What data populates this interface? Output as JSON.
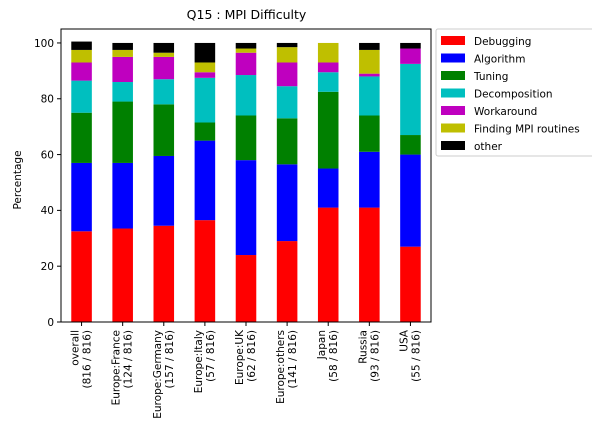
{
  "chart_data": {
    "type": "bar",
    "stacked": true,
    "title": "Q15 : MPI Difficulty",
    "xlabel": "",
    "ylabel": "Percentage",
    "ylim": [
      0,
      105
    ],
    "yticks": [
      0,
      20,
      40,
      60,
      80,
      100
    ],
    "grid": false,
    "legend_position": "outside-right-top",
    "categories": [
      [
        "overall",
        "(816 / 816)"
      ],
      [
        "Europe:France",
        "(124 / 816)"
      ],
      [
        "Europe:Germany",
        "(157 / 816)"
      ],
      [
        "Europe:Italy",
        "(57 / 816)"
      ],
      [
        "Europe:UK",
        "(62 / 816)"
      ],
      [
        "Europe:others",
        "(141 / 816)"
      ],
      [
        "Japan",
        "(58 / 816)"
      ],
      [
        "Russia",
        "(93 / 816)"
      ],
      [
        "USA",
        "(55 / 816)"
      ]
    ],
    "series": [
      {
        "name": "Debugging",
        "color": "#ff0000",
        "values": [
          32.5,
          33.5,
          34.5,
          36.5,
          24.0,
          29.0,
          41.0,
          41.0,
          27.0
        ]
      },
      {
        "name": "Algorithm",
        "color": "#0000ff",
        "values": [
          24.5,
          23.5,
          25.0,
          28.5,
          34.0,
          27.5,
          14.0,
          20.0,
          33.0
        ]
      },
      {
        "name": "Tuning",
        "color": "#008000",
        "values": [
          18.0,
          22.0,
          18.5,
          6.5,
          16.0,
          16.5,
          27.5,
          13.0,
          7.0
        ]
      },
      {
        "name": "Decomposition",
        "color": "#00bfbf",
        "values": [
          11.5,
          7.0,
          9.0,
          16.0,
          14.5,
          11.5,
          7.0,
          14.0,
          25.5
        ]
      },
      {
        "name": "Workaround",
        "color": "#bf00bf",
        "values": [
          6.5,
          9.0,
          8.0,
          2.0,
          8.0,
          8.5,
          3.5,
          1.0,
          5.5
        ]
      },
      {
        "name": "Finding MPI routines",
        "color": "#bfbf00",
        "values": [
          4.5,
          2.5,
          1.5,
          3.5,
          1.5,
          5.5,
          7.0,
          8.5,
          0.0
        ]
      },
      {
        "name": "other",
        "color": "#000000",
        "values": [
          3.0,
          2.5,
          3.5,
          7.0,
          2.0,
          1.5,
          0.0,
          2.5,
          2.0
        ]
      }
    ]
  }
}
